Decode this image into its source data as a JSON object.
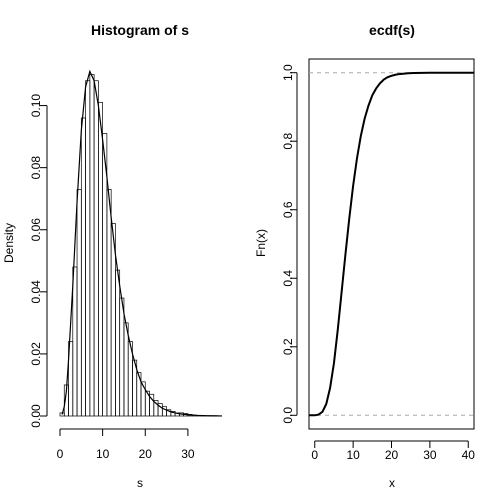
{
  "chart_data": [
    {
      "type": "histogram",
      "title": "Histogram of s",
      "xlabel": "s",
      "ylabel": "Density",
      "xlim": [
        0,
        38
      ],
      "ylim": [
        0,
        0.115
      ],
      "xticks": [
        "0",
        "10",
        "20",
        "30"
      ],
      "yticks": [
        "0.00",
        "0.02",
        "0.04",
        "0.06",
        "0.08",
        "0.10"
      ],
      "bin_width": 1,
      "bins": [
        {
          "x0": 0,
          "x1": 1,
          "density": 0.001
        },
        {
          "x0": 1,
          "x1": 2,
          "density": 0.01
        },
        {
          "x0": 2,
          "x1": 3,
          "density": 0.024
        },
        {
          "x0": 3,
          "x1": 4,
          "density": 0.048
        },
        {
          "x0": 4,
          "x1": 5,
          "density": 0.073
        },
        {
          "x0": 5,
          "x1": 6,
          "density": 0.096
        },
        {
          "x0": 6,
          "x1": 7,
          "density": 0.108
        },
        {
          "x0": 7,
          "x1": 8,
          "density": 0.11
        },
        {
          "x0": 8,
          "x1": 9,
          "density": 0.108
        },
        {
          "x0": 9,
          "x1": 10,
          "density": 0.101
        },
        {
          "x0": 10,
          "x1": 11,
          "density": 0.091
        },
        {
          "x0": 11,
          "x1": 12,
          "density": 0.073
        },
        {
          "x0": 12,
          "x1": 13,
          "density": 0.062
        },
        {
          "x0": 13,
          "x1": 14,
          "density": 0.047
        },
        {
          "x0": 14,
          "x1": 15,
          "density": 0.038
        },
        {
          "x0": 15,
          "x1": 16,
          "density": 0.03
        },
        {
          "x0": 16,
          "x1": 17,
          "density": 0.024
        },
        {
          "x0": 17,
          "x1": 18,
          "density": 0.018
        },
        {
          "x0": 18,
          "x1": 19,
          "density": 0.014
        },
        {
          "x0": 19,
          "x1": 20,
          "density": 0.011
        },
        {
          "x0": 20,
          "x1": 21,
          "density": 0.008
        },
        {
          "x0": 21,
          "x1": 22,
          "density": 0.007
        },
        {
          "x0": 22,
          "x1": 23,
          "density": 0.005
        },
        {
          "x0": 23,
          "x1": 24,
          "density": 0.004
        },
        {
          "x0": 24,
          "x1": 25,
          "density": 0.003
        },
        {
          "x0": 25,
          "x1": 26,
          "density": 0.002
        },
        {
          "x0": 26,
          "x1": 27,
          "density": 0.0015
        },
        {
          "x0": 27,
          "x1": 28,
          "density": 0.001
        },
        {
          "x0": 28,
          "x1": 29,
          "density": 0.001
        },
        {
          "x0": 29,
          "x1": 30,
          "density": 0.0008
        },
        {
          "x0": 30,
          "x1": 31,
          "density": 0.0005
        },
        {
          "x0": 31,
          "x1": 32,
          "density": 0.0003
        },
        {
          "x0": 32,
          "x1": 33,
          "density": 0.0002
        },
        {
          "x0": 33,
          "x1": 34,
          "density": 0.0002
        },
        {
          "x0": 34,
          "x1": 35,
          "density": 0.0001
        },
        {
          "x0": 35,
          "x1": 36,
          "density": 0.0001
        },
        {
          "x0": 36,
          "x1": 37,
          "density": 0.0001
        }
      ],
      "curve": {
        "x": [
          0.5,
          1,
          1.5,
          2,
          3,
          4,
          5,
          6,
          7,
          8,
          9,
          10,
          11,
          12,
          13,
          14,
          15,
          16,
          17,
          18,
          19,
          20,
          21,
          22,
          23,
          24,
          26,
          28,
          30,
          32,
          34,
          36,
          38
        ],
        "y": [
          0.0005,
          0.003,
          0.008,
          0.018,
          0.042,
          0.069,
          0.092,
          0.106,
          0.111,
          0.108,
          0.1,
          0.089,
          0.077,
          0.064,
          0.052,
          0.042,
          0.033,
          0.026,
          0.02,
          0.015,
          0.011,
          0.0085,
          0.0063,
          0.0047,
          0.0035,
          0.0025,
          0.0013,
          0.0007,
          0.0004,
          0.0002,
          0.0001,
          5e-05,
          2e-05
        ]
      }
    },
    {
      "type": "line",
      "title": "ecdf(s)",
      "xlabel": "x",
      "ylabel": "Fn(x)",
      "xlim": [
        -1.5,
        41.5
      ],
      "ylim": [
        -0.04,
        1.04
      ],
      "xticks": [
        "0",
        "10",
        "20",
        "30",
        "40"
      ],
      "yticks": [
        "0.0",
        "0.2",
        "0.4",
        "0.6",
        "0.8",
        "1.0"
      ],
      "reference_lines_y": [
        0,
        1
      ],
      "series": [
        {
          "x": [
            0,
            1,
            2,
            3,
            4,
            5,
            6,
            7,
            8,
            9,
            10,
            11,
            12,
            13,
            14,
            15,
            16,
            17,
            18,
            19,
            20,
            21,
            22,
            23,
            24,
            25,
            26,
            28,
            30,
            32,
            35,
            40
          ],
          "y": [
            0,
            0.002,
            0.01,
            0.033,
            0.08,
            0.152,
            0.25,
            0.36,
            0.47,
            0.575,
            0.67,
            0.75,
            0.815,
            0.866,
            0.904,
            0.934,
            0.954,
            0.969,
            0.98,
            0.987,
            0.991,
            0.994,
            0.996,
            0.997,
            0.998,
            0.9986,
            0.999,
            0.9995,
            0.9998,
            0.9999,
            1,
            1
          ]
        }
      ]
    }
  ]
}
